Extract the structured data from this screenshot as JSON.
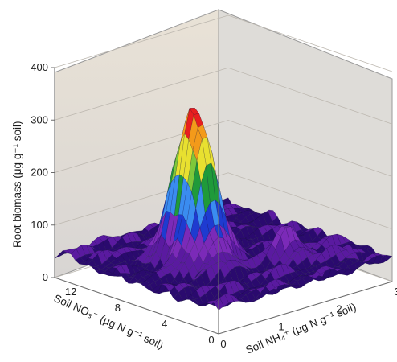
{
  "chart_data": {
    "type": "surface3d",
    "title": "",
    "zlabel": "Root biomass (μg g⁻¹ soil)",
    "xlabel": "Soil NO₃⁻ (μg N g⁻¹ soil)",
    "ylabel": "Soil NH₄⁺ (μg N g⁻¹ soil)",
    "zlim": [
      0,
      400
    ],
    "z_ticks": [
      "0",
      "100",
      "200",
      "300",
      "400"
    ],
    "xlim": [
      0,
      14
    ],
    "x_ticks": [
      "0",
      "4",
      "8",
      "12"
    ],
    "ylim": [
      0,
      3
    ],
    "y_ticks": [
      "0",
      "1",
      "2",
      "3"
    ],
    "colormap": [
      "#2a0a6e",
      "#5a1aa0",
      "#7b2ab8",
      "#1e3bd0",
      "#3a8cf0",
      "#1f9a3a",
      "#7ec83a",
      "#e8e030",
      "#f39a1a",
      "#e81e1e"
    ],
    "grid": true,
    "peak": {
      "no3": 7.5,
      "nh4": 1.1,
      "biomass": 335
    },
    "secondary_peaks": [
      {
        "no3": 4.0,
        "nh4": 2.0,
        "biomass": 95
      },
      {
        "no3": 2.5,
        "nh4": 2.6,
        "biomass": 60
      },
      {
        "no3": 12.5,
        "nh4": 0.3,
        "biomass": 55
      }
    ],
    "baseline_biomass": 45
  }
}
